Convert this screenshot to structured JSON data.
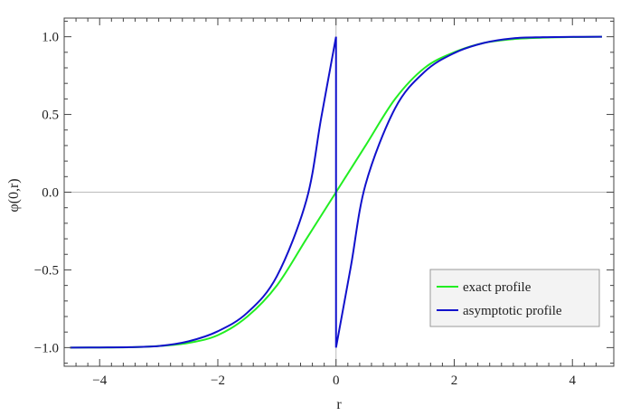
{
  "chart_data": {
    "type": "line",
    "title": "",
    "xlabel": "r",
    "ylabel": "φ(0,r)",
    "xlim": [
      -4.6,
      4.7
    ],
    "ylim": [
      -1.12,
      1.12
    ],
    "x_ticks": [
      -4,
      -2,
      0,
      2,
      4
    ],
    "x_tick_labels": [
      "−4",
      "−2",
      "0",
      "2",
      "4"
    ],
    "y_ticks": [
      -1.0,
      -0.5,
      0.0,
      0.5,
      1.0
    ],
    "y_tick_labels": [
      "−1.0",
      "−0.5",
      "0.0",
      "0.5",
      "1.0"
    ],
    "grid": false,
    "reference_lines": {
      "horizontal_at_y": 0,
      "vertical_at_x": 0
    },
    "legend_position": "bottom-right",
    "series": [
      {
        "name": "exact profile",
        "color": "#22ee22",
        "x": [
          -4.5,
          -4.0,
          -3.5,
          -3.0,
          -2.5,
          -2.0,
          -1.5,
          -1.0,
          -0.5,
          0.0,
          0.5,
          1.0,
          1.5,
          2.0,
          2.5,
          3.0,
          3.5,
          4.0,
          4.5
        ],
        "y": [
          -1.0,
          -0.999,
          -0.998,
          -0.99,
          -0.97,
          -0.92,
          -0.8,
          -0.6,
          -0.3,
          0.0,
          0.3,
          0.6,
          0.8,
          0.9,
          0.96,
          0.985,
          0.994,
          0.998,
          1.0
        ]
      },
      {
        "name": "asymptotic profile",
        "color": "#1111cc",
        "x": [
          -4.5,
          -4.0,
          -3.5,
          -3.0,
          -2.5,
          -2.0,
          -1.5,
          -1.0,
          -0.5,
          -0.25,
          0.0,
          0.0,
          0.0,
          0.25,
          0.5,
          1.0,
          1.5,
          2.0,
          2.5,
          3.0,
          3.5,
          4.0,
          4.5
        ],
        "y": [
          -1.0,
          -0.999,
          -0.997,
          -0.99,
          -0.96,
          -0.895,
          -0.775,
          -0.54,
          -0.05,
          0.48,
          1.0,
          0.0,
          -1.0,
          -0.48,
          0.05,
          0.54,
          0.775,
          0.895,
          0.96,
          0.99,
          0.997,
          0.999,
          1.0
        ]
      }
    ]
  }
}
